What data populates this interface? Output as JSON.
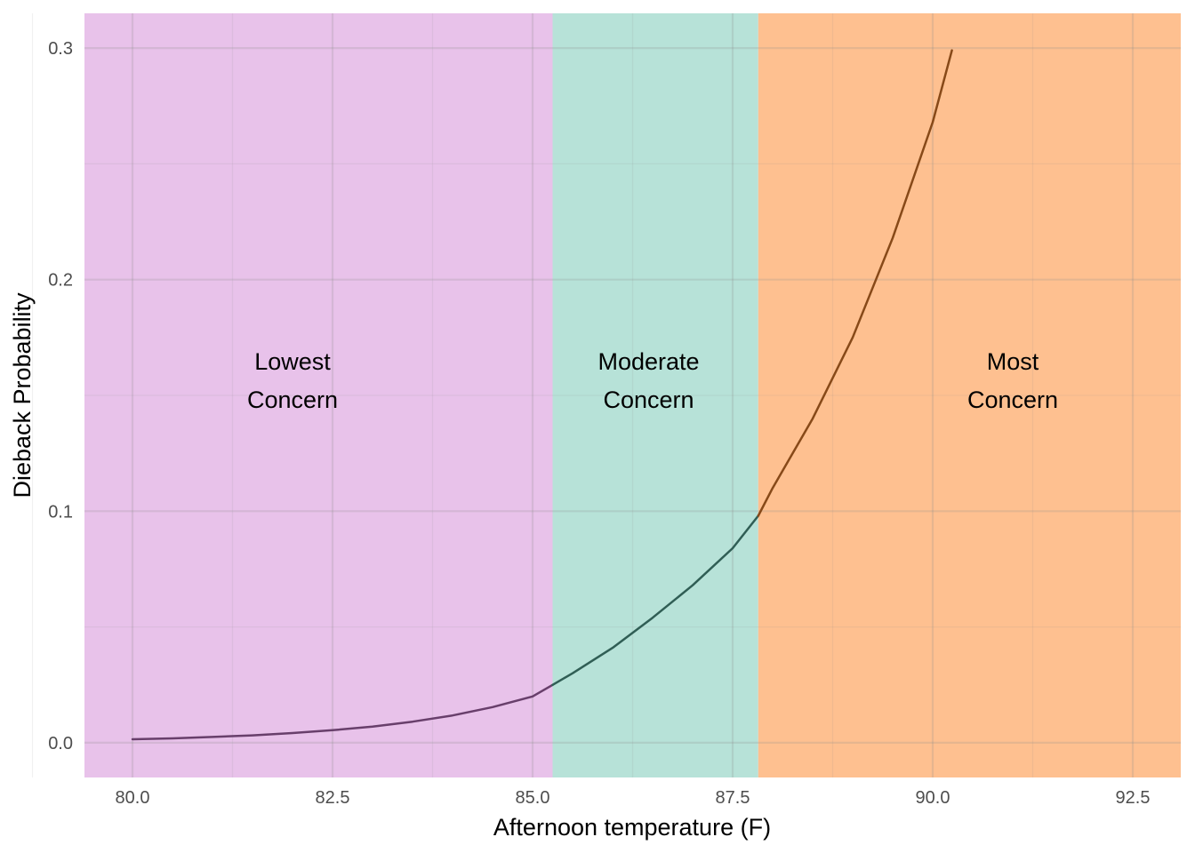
{
  "chart_data": {
    "type": "line",
    "title": "",
    "xlabel": "Afternoon temperature (F)",
    "ylabel": "Dieback Probability",
    "xlim": [
      79.4,
      93.1
    ],
    "ylim": [
      -0.015,
      0.315
    ],
    "x_ticks": [
      "80.0",
      "82.5",
      "85.0",
      "87.5",
      "90.0",
      "92.5"
    ],
    "y_ticks": [
      "0.0",
      "0.1",
      "0.2",
      "0.3"
    ],
    "grid": true,
    "legend": "none",
    "zones": [
      {
        "label_line1": "Lowest",
        "label_line2": "Concern",
        "x_start": 79.4,
        "x_end": 85.25,
        "color": "#e8c2ea",
        "label_x": 82.0,
        "label_y": 0.148
      },
      {
        "label_line1": "Moderate",
        "label_line2": "Concern",
        "x_start": 85.25,
        "x_end": 87.82,
        "color": "#b7e2d8",
        "label_x": 86.45,
        "label_y": 0.148
      },
      {
        "label_line1": "Most",
        "label_line2": "Concern",
        "x_start": 87.82,
        "x_end": 93.1,
        "color": "#fec090",
        "label_x": 91.0,
        "label_y": 0.148
      }
    ],
    "series": [
      {
        "segments": [
          {
            "color": "#683f6b",
            "x": [
              80.0,
              80.5,
              81.0,
              81.5,
              82.0,
              82.5,
              83.0,
              83.5,
              84.0,
              84.5,
              85.0,
              85.25
            ],
            "y": [
              0.0015,
              0.0019,
              0.0025,
              0.0032,
              0.0042,
              0.0054,
              0.007,
              0.0091,
              0.0118,
              0.0154,
              0.02,
              0.025
            ]
          },
          {
            "color": "#305e55",
            "x": [
              85.25,
              85.5,
              86.0,
              86.5,
              87.0,
              87.5,
              87.82
            ],
            "y": [
              0.025,
              0.03,
              0.041,
              0.054,
              0.068,
              0.084,
              0.098
            ]
          },
          {
            "color": "#874918",
            "x": [
              87.82,
              88.0,
              88.5,
              89.0,
              89.5,
              90.0,
              90.24
            ],
            "y": [
              0.098,
              0.11,
              0.14,
              0.175,
              0.218,
              0.268,
              0.299
            ]
          }
        ]
      }
    ]
  }
}
